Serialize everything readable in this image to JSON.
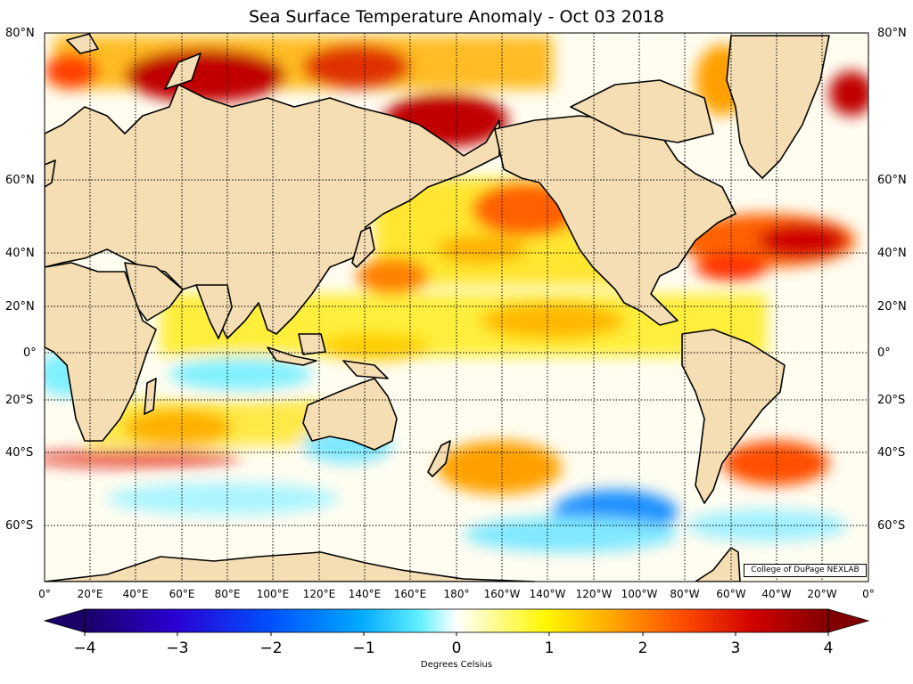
{
  "title": "Sea Surface Temperature Anomaly - Oct 03 2018",
  "credit": "College of DuPage NEXLAB",
  "lat_labels": [
    "80°N",
    "60°N",
    "40°N",
    "20°N",
    "0°",
    "20°S",
    "40°S",
    "60°S"
  ],
  "lon_labels": [
    "0°",
    "20°E",
    "40°E",
    "60°E",
    "80°E",
    "100°E",
    "120°E",
    "140°E",
    "160°E",
    "180°",
    "160°W",
    "140°W",
    "120°W",
    "100°W",
    "80°W",
    "60°W",
    "40°W",
    "20°W",
    "0°"
  ],
  "colorbar": {
    "min": -4,
    "max": 4,
    "tick_labels": [
      "−4",
      "−3",
      "−2",
      "−1",
      "0",
      "1",
      "2",
      "3",
      "4"
    ],
    "label": "Degrees Celsius",
    "stops": [
      "#1a0066",
      "#2a00d0",
      "#0050ff",
      "#00a8ff",
      "#60f0ff",
      "#ffffff",
      "#fff700",
      "#ffb000",
      "#ff5000",
      "#d00000",
      "#800000"
    ]
  },
  "colors": {
    "land": "#f5deb3",
    "coast": "#000000",
    "ocean_neutral": "#ffffff"
  }
}
